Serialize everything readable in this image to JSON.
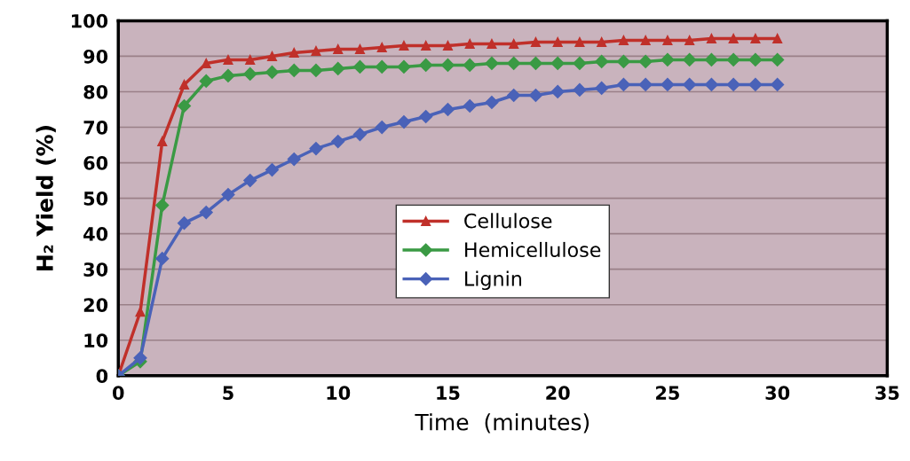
{
  "chart_data": {
    "type": "line",
    "xlabel": "Time  (minutes)",
    "ylabel": "H₂ Yield (%)",
    "x": [
      0,
      1,
      2,
      3,
      4,
      5,
      6,
      7,
      8,
      9,
      10,
      11,
      12,
      13,
      14,
      15,
      16,
      17,
      18,
      19,
      20,
      21,
      22,
      23,
      24,
      25,
      26,
      27,
      28,
      29,
      30
    ],
    "xlim": [
      0,
      35
    ],
    "xticks": [
      0,
      5,
      10,
      15,
      20,
      25,
      30,
      35
    ],
    "ylim": [
      0,
      100
    ],
    "yticks": [
      0,
      10,
      20,
      30,
      40,
      50,
      60,
      70,
      80,
      90,
      100
    ],
    "grid": "y",
    "legend": "center",
    "line_style": "solid",
    "series": [
      {
        "name": "Cellulose",
        "color": "#c0302a",
        "marker": "triangle",
        "values": [
          0,
          18,
          66,
          82,
          88,
          89,
          89,
          90,
          91,
          91.5,
          92,
          92,
          92.5,
          93,
          93,
          93,
          93.5,
          93.5,
          93.5,
          94,
          94,
          94,
          94,
          94.5,
          94.5,
          94.5,
          94.5,
          95,
          95,
          95,
          95
        ]
      },
      {
        "name": "Hemicellulose",
        "color": "#3a9a44",
        "marker": "diamond",
        "values": [
          0,
          4,
          48,
          76,
          83,
          84.5,
          85,
          85.5,
          86,
          86,
          86.5,
          87,
          87,
          87,
          87.5,
          87.5,
          87.5,
          88,
          88,
          88,
          88,
          88,
          88.5,
          88.5,
          88.5,
          89,
          89,
          89,
          89,
          89,
          89
        ]
      },
      {
        "name": "Lignin",
        "color": "#4a62b8",
        "marker": "diamond",
        "values": [
          0,
          5,
          33,
          43,
          46,
          51,
          55,
          58,
          61,
          64,
          66,
          68,
          70,
          71.5,
          73,
          75,
          76,
          77,
          79,
          79,
          80,
          80.5,
          81,
          82,
          82,
          82,
          82,
          82,
          82,
          82,
          82
        ]
      }
    ]
  }
}
